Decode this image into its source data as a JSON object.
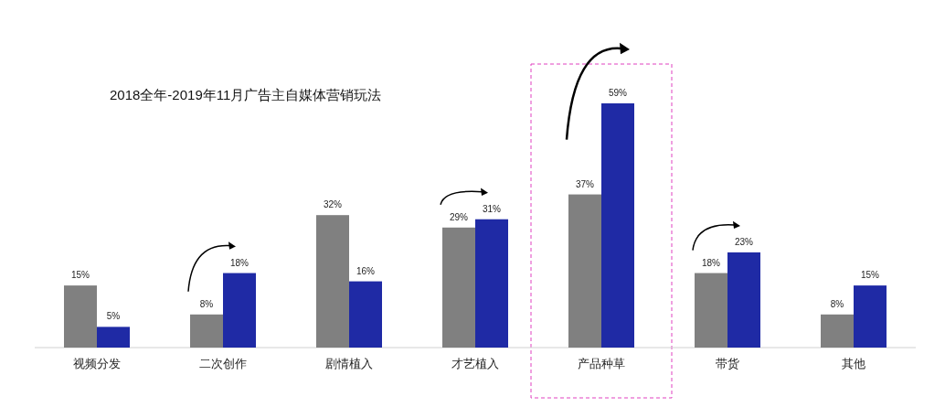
{
  "chart_data": {
    "type": "bar",
    "title": "2018全年-2019年11月广告主自媒体营销玩法",
    "categories": [
      "视频分发",
      "二次创作",
      "剧情植入",
      "才艺植入",
      "产品种草",
      "带货",
      "其他"
    ],
    "series": [
      {
        "color": "#808080",
        "values": [
          15,
          8,
          32,
          29,
          37,
          18,
          8
        ],
        "value_labels": [
          "15%",
          "8%",
          "32%",
          "29%",
          "37%",
          "18%",
          "8%"
        ]
      },
      {
        "color": "#1f2aa5",
        "values": [
          5,
          18,
          16,
          31,
          59,
          23,
          15
        ],
        "value_labels": [
          "5%",
          "18%",
          "16%",
          "31%",
          "59%",
          "23%",
          "15%"
        ]
      }
    ]
  }
}
